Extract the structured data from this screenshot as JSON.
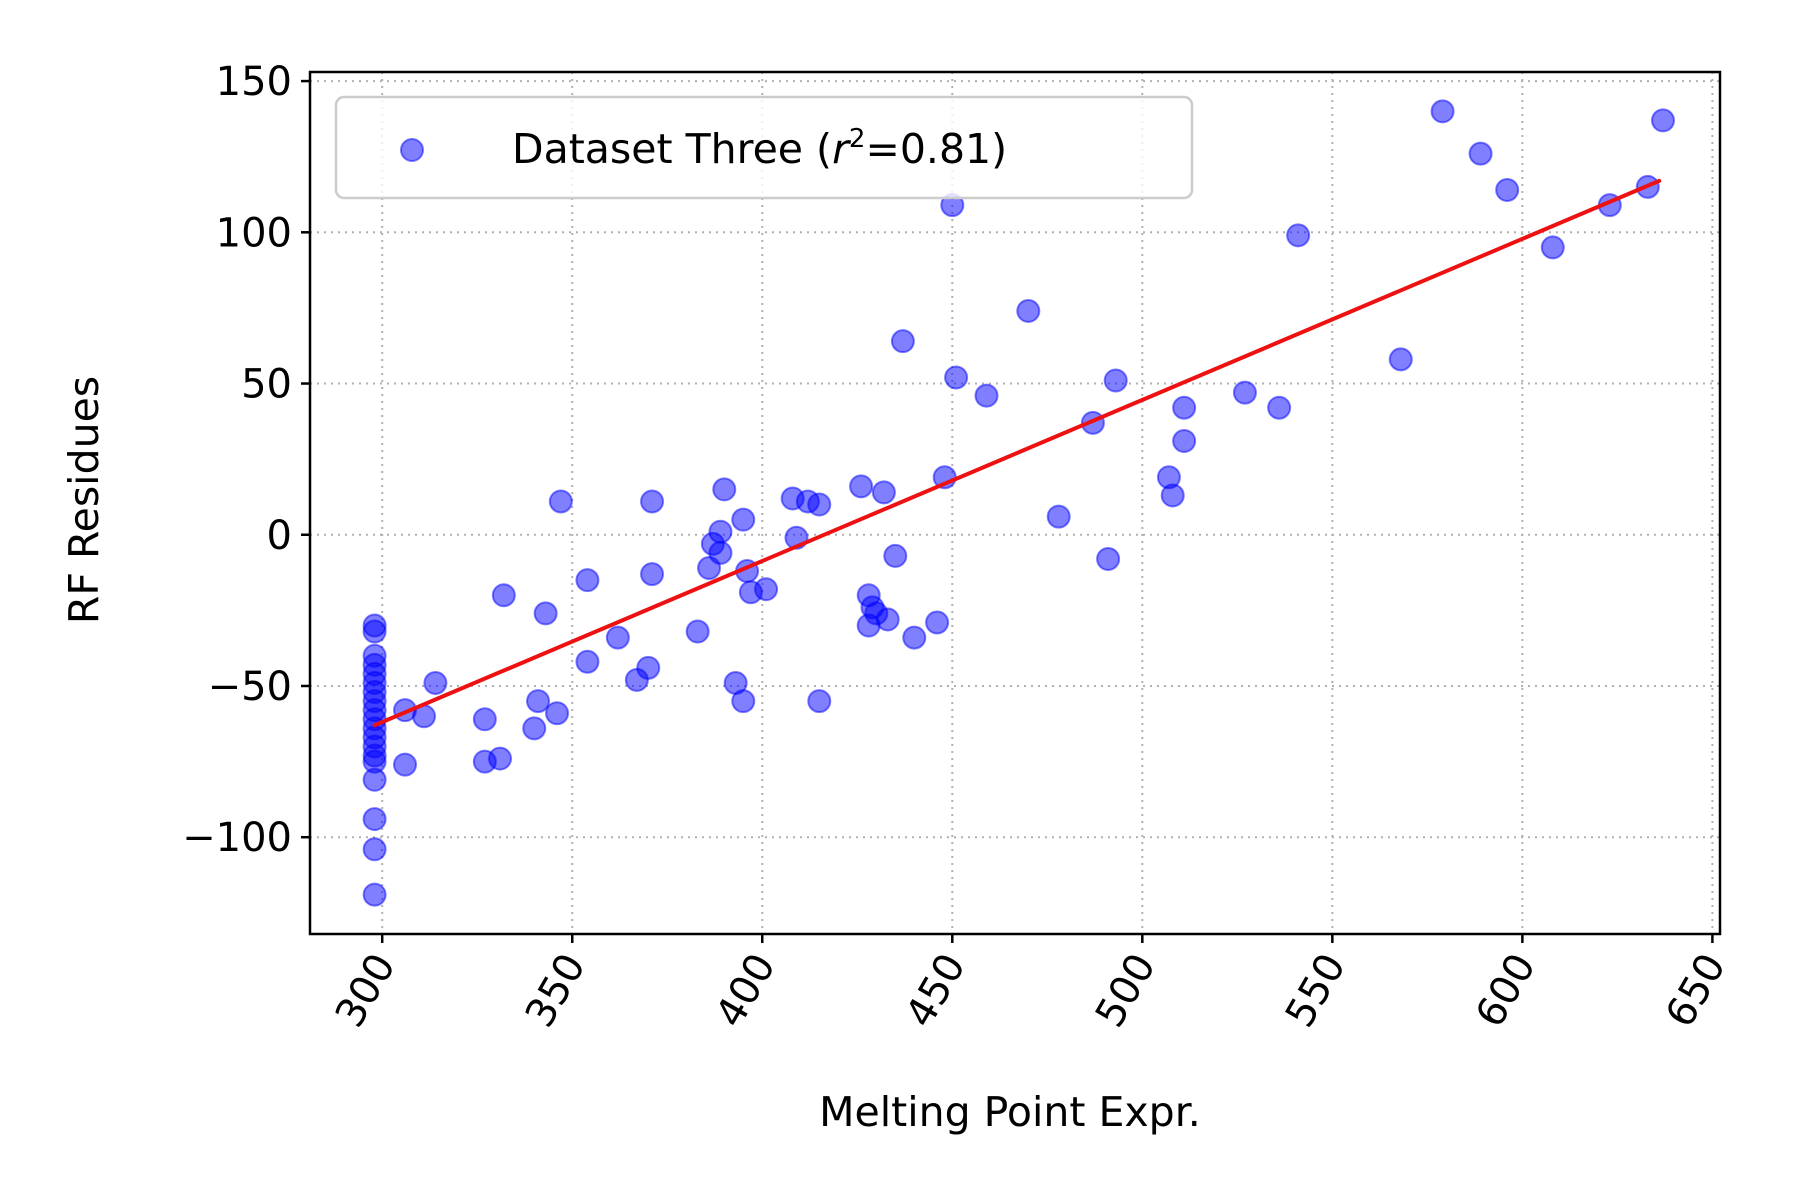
{
  "chart_data": {
    "type": "scatter",
    "xlabel": "Melting Point Expr.",
    "ylabel": "RF Residues",
    "xlim": [
      281,
      652
    ],
    "ylim": [
      -132,
      153
    ],
    "xticks": [
      300,
      350,
      400,
      450,
      500,
      550,
      600,
      650
    ],
    "yticks": [
      -100,
      -50,
      0,
      50,
      100,
      150
    ],
    "xtick_rotation": -60,
    "grid": true,
    "legend": {
      "placement": "upper-left",
      "label_prefix": "Dataset Three (",
      "label_r": "r",
      "label_sup": "2",
      "label_suffix": "=0.81)"
    },
    "colors": {
      "points": "#0000ff",
      "fit_line": "#ee1111"
    },
    "fit_line": {
      "x": [
        298,
        636
      ],
      "y": [
        -63,
        117
      ]
    },
    "series": [
      {
        "name": "Dataset Three (r²=0.81)",
        "points": [
          [
            298,
            -30
          ],
          [
            298,
            -32
          ],
          [
            298,
            -40
          ],
          [
            298,
            -43
          ],
          [
            298,
            -46
          ],
          [
            298,
            -49
          ],
          [
            298,
            -52
          ],
          [
            298,
            -55
          ],
          [
            298,
            -58
          ],
          [
            298,
            -61
          ],
          [
            298,
            -64
          ],
          [
            298,
            -67
          ],
          [
            298,
            -70
          ],
          [
            298,
            -73
          ],
          [
            298,
            -75
          ],
          [
            298,
            -81
          ],
          [
            298,
            -94
          ],
          [
            298,
            -104
          ],
          [
            298,
            -119
          ],
          [
            306,
            -58
          ],
          [
            306,
            -76
          ],
          [
            311,
            -60
          ],
          [
            314,
            -49
          ],
          [
            327,
            -61
          ],
          [
            327,
            -75
          ],
          [
            331,
            -74
          ],
          [
            332,
            -20
          ],
          [
            340,
            -64
          ],
          [
            341,
            -55
          ],
          [
            343,
            -26
          ],
          [
            346,
            -59
          ],
          [
            347,
            11
          ],
          [
            354,
            -15
          ],
          [
            354,
            -42
          ],
          [
            362,
            -34
          ],
          [
            367,
            -48
          ],
          [
            370,
            -44
          ],
          [
            371,
            11
          ],
          [
            371,
            -13
          ],
          [
            383,
            -32
          ],
          [
            386,
            -11
          ],
          [
            387,
            -3
          ],
          [
            389,
            1
          ],
          [
            389,
            -6
          ],
          [
            390,
            15
          ],
          [
            393,
            -49
          ],
          [
            395,
            5
          ],
          [
            395,
            -55
          ],
          [
            396,
            -12
          ],
          [
            397,
            -19
          ],
          [
            401,
            -18
          ],
          [
            408,
            12
          ],
          [
            409,
            -1
          ],
          [
            412,
            11
          ],
          [
            415,
            10
          ],
          [
            415,
            -55
          ],
          [
            426,
            16
          ],
          [
            428,
            -20
          ],
          [
            428,
            -30
          ],
          [
            429,
            -24
          ],
          [
            430,
            -26
          ],
          [
            432,
            14
          ],
          [
            433,
            -28
          ],
          [
            435,
            -7
          ],
          [
            437,
            64
          ],
          [
            440,
            -34
          ],
          [
            446,
            -29
          ],
          [
            448,
            19
          ],
          [
            450,
            109
          ],
          [
            451,
            52
          ],
          [
            459,
            46
          ],
          [
            470,
            74
          ],
          [
            478,
            6
          ],
          [
            487,
            37
          ],
          [
            491,
            -8
          ],
          [
            493,
            51
          ],
          [
            507,
            19
          ],
          [
            508,
            13
          ],
          [
            511,
            42
          ],
          [
            511,
            31
          ],
          [
            527,
            47
          ],
          [
            536,
            42
          ],
          [
            541,
            99
          ],
          [
            568,
            58
          ],
          [
            579,
            140
          ],
          [
            589,
            126
          ],
          [
            596,
            114
          ],
          [
            608,
            95
          ],
          [
            623,
            109
          ],
          [
            633,
            115
          ],
          [
            637,
            137
          ]
        ]
      }
    ]
  }
}
